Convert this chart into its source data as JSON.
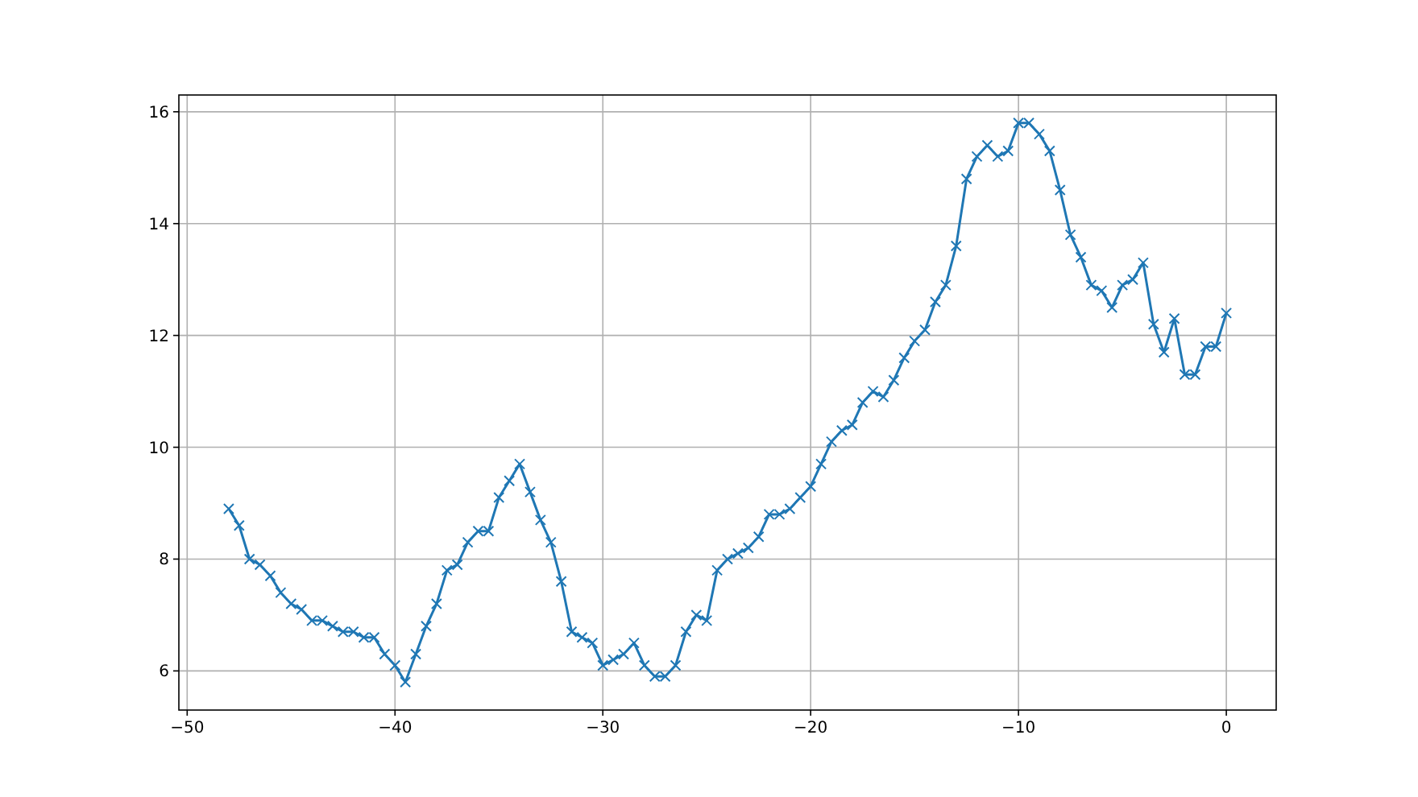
{
  "chart_data": {
    "type": "line",
    "marker": "cross",
    "grid": true,
    "xlim": [
      -50.4,
      2.4
    ],
    "ylim": [
      5.3,
      16.3
    ],
    "xticks": [
      -50,
      -40,
      -30,
      -20,
      -10,
      0
    ],
    "yticks": [
      6,
      8,
      10,
      12,
      14,
      16
    ],
    "x": [
      -48,
      -47.5,
      -47,
      -46.5,
      -46,
      -45.5,
      -45,
      -44.5,
      -44,
      -43.5,
      -43,
      -42.5,
      -42,
      -41.5,
      -41,
      -40.5,
      -40,
      -39.5,
      -39,
      -38.5,
      -38,
      -37.5,
      -37,
      -36.5,
      -36,
      -35.5,
      -35,
      -34.5,
      -34,
      -33.5,
      -33,
      -32.5,
      -32,
      -31.5,
      -31,
      -30.5,
      -30,
      -29.5,
      -29,
      -28.5,
      -28,
      -27.5,
      -27,
      -26.5,
      -26,
      -25.5,
      -25,
      -24.5,
      -24,
      -23.5,
      -23,
      -22.5,
      -22,
      -21.5,
      -21,
      -20.5,
      -20,
      -19.5,
      -19,
      -18.5,
      -18,
      -17.5,
      -17,
      -16.5,
      -16,
      -15.5,
      -15,
      -14.5,
      -14,
      -13.5,
      -13,
      -12.5,
      -12,
      -11.5,
      -11,
      -10.5,
      -10,
      -9.5,
      -9,
      -8.5,
      -8,
      -7.5,
      -7,
      -6.5,
      -6,
      -5.5,
      -5,
      -4.5,
      -4,
      -3.5,
      -3,
      -2.5,
      -2,
      -1.5,
      -1,
      -0.5,
      0
    ],
    "series": [
      {
        "color": "#1f77b4",
        "values": [
          8.9,
          8.6,
          8.0,
          7.9,
          7.7,
          7.4,
          7.2,
          7.1,
          6.9,
          6.9,
          6.8,
          6.7,
          6.7,
          6.6,
          6.6,
          6.3,
          6.1,
          5.8,
          6.3,
          6.8,
          7.2,
          7.8,
          7.9,
          8.3,
          8.5,
          8.5,
          9.1,
          9.4,
          9.7,
          9.2,
          8.7,
          8.3,
          7.6,
          6.7,
          6.6,
          6.5,
          6.1,
          6.2,
          6.3,
          6.5,
          6.1,
          5.9,
          5.9,
          6.1,
          6.7,
          7.0,
          6.9,
          7.8,
          8.0,
          8.1,
          8.2,
          8.4,
          8.8,
          8.8,
          8.9,
          9.1,
          9.3,
          9.7,
          10.1,
          10.3,
          10.4,
          10.8,
          11.0,
          10.9,
          11.2,
          11.6,
          11.9,
          12.1,
          12.6,
          12.9,
          13.6,
          14.8,
          15.2,
          15.4,
          15.2,
          15.3,
          15.8,
          15.8,
          15.6,
          15.3,
          14.6,
          13.8,
          13.4,
          12.9,
          12.8,
          12.5,
          12.9,
          13.0,
          13.3,
          12.2,
          11.7,
          12.3,
          11.3,
          11.3,
          11.8,
          11.8,
          12.4
        ]
      }
    ]
  }
}
